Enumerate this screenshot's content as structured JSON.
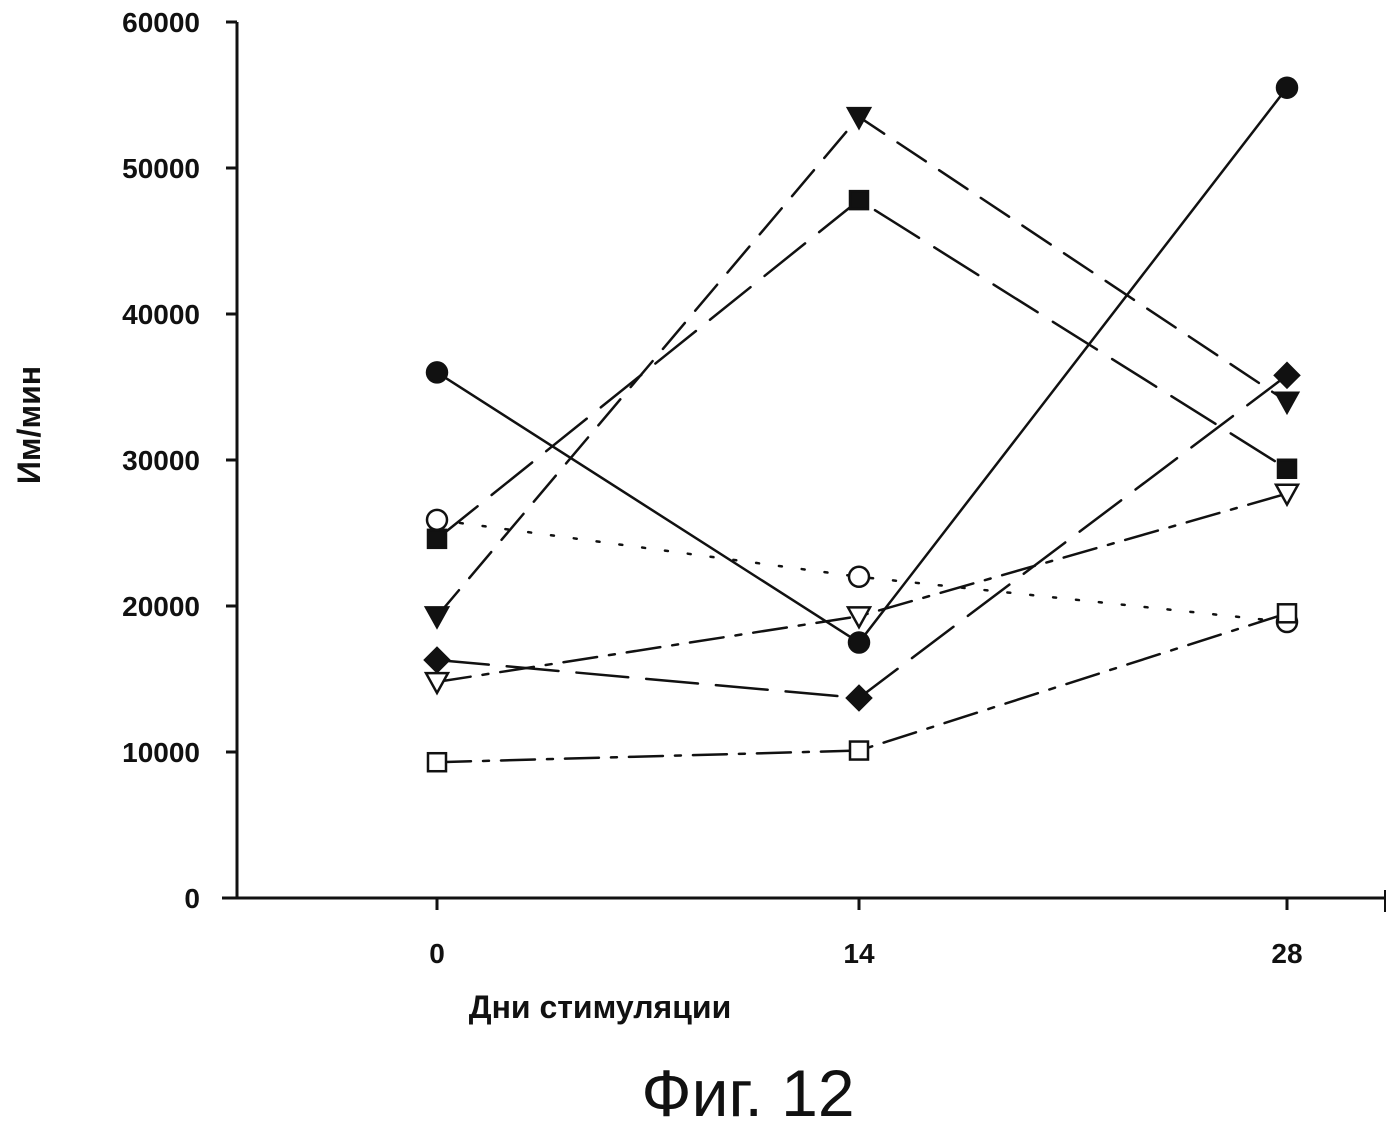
{
  "chart_data": {
    "type": "line",
    "title": "",
    "xlabel": "Дни стимуляции",
    "ylabel": "Им/мин",
    "x": [
      0,
      14,
      28
    ],
    "xticks": [
      "0",
      "14",
      "28"
    ],
    "yticks": [
      "0",
      "10000",
      "20000",
      "30000",
      "40000",
      "50000",
      "60000"
    ],
    "ylim": [
      0,
      60000
    ],
    "grid": false,
    "legend": "none",
    "series": [
      {
        "name": "filled-circle",
        "marker": "circle",
        "filled": true,
        "line_style": "solid",
        "values": [
          36000,
          17500,
          55500
        ]
      },
      {
        "name": "filled-triangle-down",
        "marker": "triangle-down",
        "filled": true,
        "line_style": "dashed",
        "values": [
          19300,
          53500,
          34000
        ]
      },
      {
        "name": "filled-square",
        "marker": "square",
        "filled": true,
        "line_style": "long-dash",
        "values": [
          24600,
          47800,
          29400
        ]
      },
      {
        "name": "filled-diamond",
        "marker": "diamond",
        "filled": true,
        "line_style": "long-dash",
        "values": [
          16300,
          13700,
          35800
        ]
      },
      {
        "name": "open-circle",
        "marker": "circle",
        "filled": false,
        "line_style": "dotted",
        "values": [
          25900,
          22000,
          18900
        ]
      },
      {
        "name": "open-triangle-down",
        "marker": "triangle-down",
        "filled": false,
        "line_style": "dash-dot",
        "values": [
          14800,
          19300,
          27700
        ]
      },
      {
        "name": "open-square",
        "marker": "square",
        "filled": false,
        "line_style": "dash-dot",
        "values": [
          9300,
          10100,
          19500
        ]
      }
    ]
  },
  "caption": "Фиг. 12"
}
